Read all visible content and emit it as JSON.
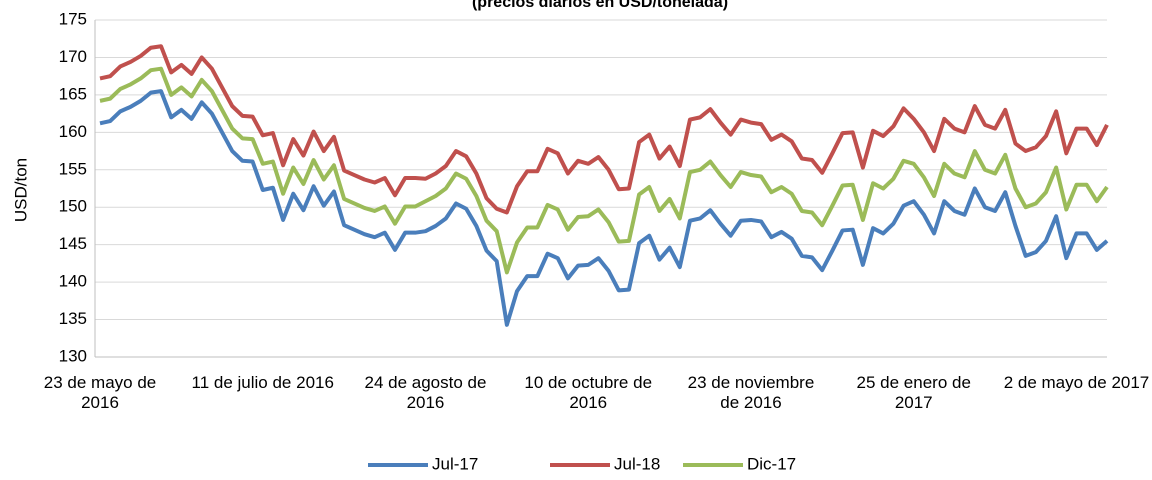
{
  "chart_data": {
    "type": "line",
    "title": "(precios diarios en USD/tonelada)",
    "y_label": "USD/ton",
    "categories": [
      "23 de mayo de 2016",
      null,
      null,
      null,
      null,
      null,
      null,
      null,
      null,
      null,
      null,
      null,
      null,
      null,
      null,
      null,
      "11 de julio de 2016",
      null,
      null,
      null,
      null,
      null,
      null,
      null,
      null,
      null,
      null,
      null,
      null,
      null,
      null,
      null,
      "24 de agosto de 2016",
      null,
      null,
      null,
      null,
      null,
      null,
      null,
      null,
      null,
      null,
      null,
      null,
      null,
      null,
      null,
      "10 de octubre de 2016",
      null,
      null,
      null,
      null,
      null,
      null,
      null,
      null,
      null,
      null,
      null,
      null,
      null,
      null,
      null,
      "23 de noviembre de 2016",
      null,
      null,
      null,
      null,
      null,
      null,
      null,
      null,
      null,
      null,
      null,
      null,
      null,
      null,
      null,
      "25 de enero de 2017",
      null,
      null,
      null,
      null,
      null,
      null,
      null,
      null,
      null,
      null,
      null,
      null,
      null,
      null,
      null,
      "2 de mayo de 2017",
      null,
      null,
      null
    ],
    "series": [
      {
        "name": "Jul-17",
        "color": "#4a7ebb",
        "values": [
          161.2,
          161.5,
          162.8,
          163.4,
          164.2,
          165.3,
          165.5,
          162,
          163,
          161.8,
          164,
          162.5,
          160,
          157.5,
          156.2,
          156.1,
          152.3,
          152.6,
          148.3,
          151.8,
          149.6,
          152.8,
          150.2,
          152.1,
          147.6,
          147,
          146.4,
          146,
          146.6,
          144.3,
          146.6,
          146.6,
          146.8,
          147.5,
          148.5,
          150.5,
          149.8,
          147.5,
          144.2,
          142.8,
          134.3,
          138.8,
          140.8,
          140.8,
          143.8,
          143.2,
          140.5,
          142.2,
          142.3,
          143.2,
          141.5,
          138.9,
          139,
          145.2,
          146.2,
          143,
          144.6,
          142,
          148.2,
          148.5,
          149.6,
          147.8,
          146.2,
          148.2,
          148.3,
          148.1,
          146,
          146.7,
          145.8,
          143.5,
          143.3,
          141.6,
          144.2,
          146.9,
          147,
          142.3,
          147.2,
          146.5,
          147.8,
          150.2,
          150.8,
          149,
          146.5,
          150.8,
          149.5,
          149,
          152.5,
          150,
          149.5,
          152,
          147.5,
          143.5,
          144,
          145.5,
          148.8,
          143.2,
          146.5,
          146.5,
          144.3,
          145.5
        ]
      },
      {
        "name": "Jul-18",
        "color": "#c0504d",
        "values": [
          167.2,
          167.5,
          168.8,
          169.4,
          170.2,
          171.3,
          171.5,
          168,
          169,
          167.8,
          170,
          168.5,
          166,
          163.5,
          162.2,
          162.1,
          159.6,
          159.9,
          155.6,
          159.1,
          156.9,
          160.1,
          157.5,
          159.4,
          154.9,
          154.3,
          153.7,
          153.3,
          153.9,
          151.6,
          153.9,
          153.9,
          153.8,
          154.5,
          155.5,
          157.5,
          156.8,
          154.5,
          151.2,
          149.8,
          149.3,
          152.8,
          154.8,
          154.8,
          157.8,
          157.2,
          154.5,
          156.2,
          155.8,
          156.7,
          155,
          152.4,
          152.5,
          158.7,
          159.7,
          156.5,
          158.1,
          155.5,
          161.7,
          162,
          163.1,
          161.3,
          159.7,
          161.7,
          161.3,
          161.1,
          159,
          159.7,
          158.8,
          156.5,
          156.3,
          154.6,
          157.2,
          159.9,
          160,
          155.3,
          160.2,
          159.5,
          160.8,
          163.2,
          161.8,
          160,
          157.5,
          161.8,
          160.5,
          160,
          163.5,
          161,
          160.5,
          163,
          158.5,
          157.5,
          158,
          159.5,
          162.8,
          157.2,
          160.5,
          160.5,
          158.3,
          161
        ]
      },
      {
        "name": "Dic-17",
        "color": "#9bbb59",
        "values": [
          164.2,
          164.5,
          165.8,
          166.4,
          167.2,
          168.3,
          168.5,
          165,
          166,
          164.8,
          167,
          165.5,
          163,
          160.5,
          159.2,
          159.1,
          155.8,
          156.1,
          151.8,
          155.3,
          153.1,
          156.3,
          153.7,
          155.6,
          151.1,
          150.5,
          149.9,
          149.5,
          150.1,
          147.8,
          150.1,
          150.1,
          150.8,
          151.5,
          152.5,
          154.5,
          153.8,
          151.5,
          148.2,
          146.8,
          141.3,
          145.3,
          147.3,
          147.3,
          150.3,
          149.7,
          147,
          148.7,
          148.8,
          149.7,
          148,
          145.4,
          145.5,
          151.7,
          152.7,
          149.5,
          151.1,
          148.5,
          154.7,
          155,
          156.1,
          154.3,
          152.7,
          154.7,
          154.3,
          154.1,
          152,
          152.7,
          151.8,
          149.5,
          149.3,
          147.6,
          150.2,
          152.9,
          153,
          148.3,
          153.2,
          152.5,
          153.8,
          156.2,
          155.8,
          154,
          151.5,
          155.8,
          154.5,
          154,
          157.5,
          155,
          154.5,
          157,
          152.5,
          150,
          150.5,
          152,
          155.3,
          149.7,
          153,
          153,
          150.8,
          152.7
        ]
      }
    ],
    "ylim": [
      130,
      175
    ],
    "yticks": [
      130,
      135,
      140,
      145,
      150,
      155,
      160,
      165,
      170,
      175
    ],
    "grid": true,
    "legend": "bottom"
  }
}
